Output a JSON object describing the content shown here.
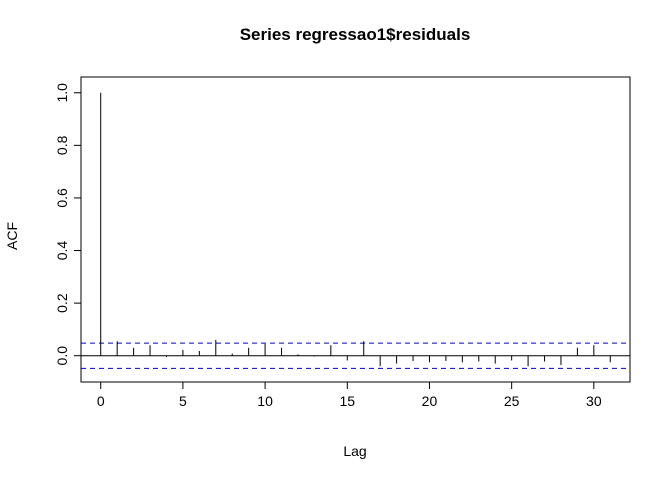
{
  "chart_data": {
    "type": "bar",
    "title": "Series  regressao1$residuals",
    "xlabel": "Lag",
    "ylabel": "ACF",
    "xlim": [
      -1.2,
      32.2
    ],
    "ylim": [
      -0.1,
      1.06
    ],
    "x_ticks": [
      0,
      5,
      10,
      15,
      20,
      25,
      30
    ],
    "y_ticks": [
      0.0,
      0.2,
      0.4,
      0.6,
      0.8,
      1.0
    ],
    "x_tick_labels": [
      "0",
      "5",
      "10",
      "15",
      "20",
      "25",
      "30"
    ],
    "y_tick_labels": [
      "0.0",
      "0.2",
      "0.4",
      "0.6",
      "0.8",
      "1.0"
    ],
    "lags": [
      0,
      1,
      2,
      3,
      4,
      5,
      6,
      7,
      8,
      9,
      10,
      11,
      12,
      13,
      14,
      15,
      16,
      17,
      18,
      19,
      20,
      21,
      22,
      23,
      24,
      25,
      26,
      27,
      28,
      29,
      30,
      31
    ],
    "acf": [
      1.0,
      0.055,
      0.03,
      0.04,
      -0.005,
      0.022,
      0.018,
      0.06,
      0.008,
      0.03,
      0.045,
      0.03,
      0.005,
      -0.003,
      0.04,
      -0.018,
      0.055,
      -0.04,
      -0.03,
      -0.02,
      -0.025,
      -0.02,
      -0.025,
      -0.022,
      -0.03,
      -0.018,
      -0.04,
      -0.022,
      -0.035,
      0.03,
      0.04,
      -0.025
    ],
    "confidence_bound": 0.048,
    "colors": {
      "bars": "#000000",
      "confidence": "#0000cd",
      "zero_line": "#000000",
      "box": "#000000"
    }
  }
}
